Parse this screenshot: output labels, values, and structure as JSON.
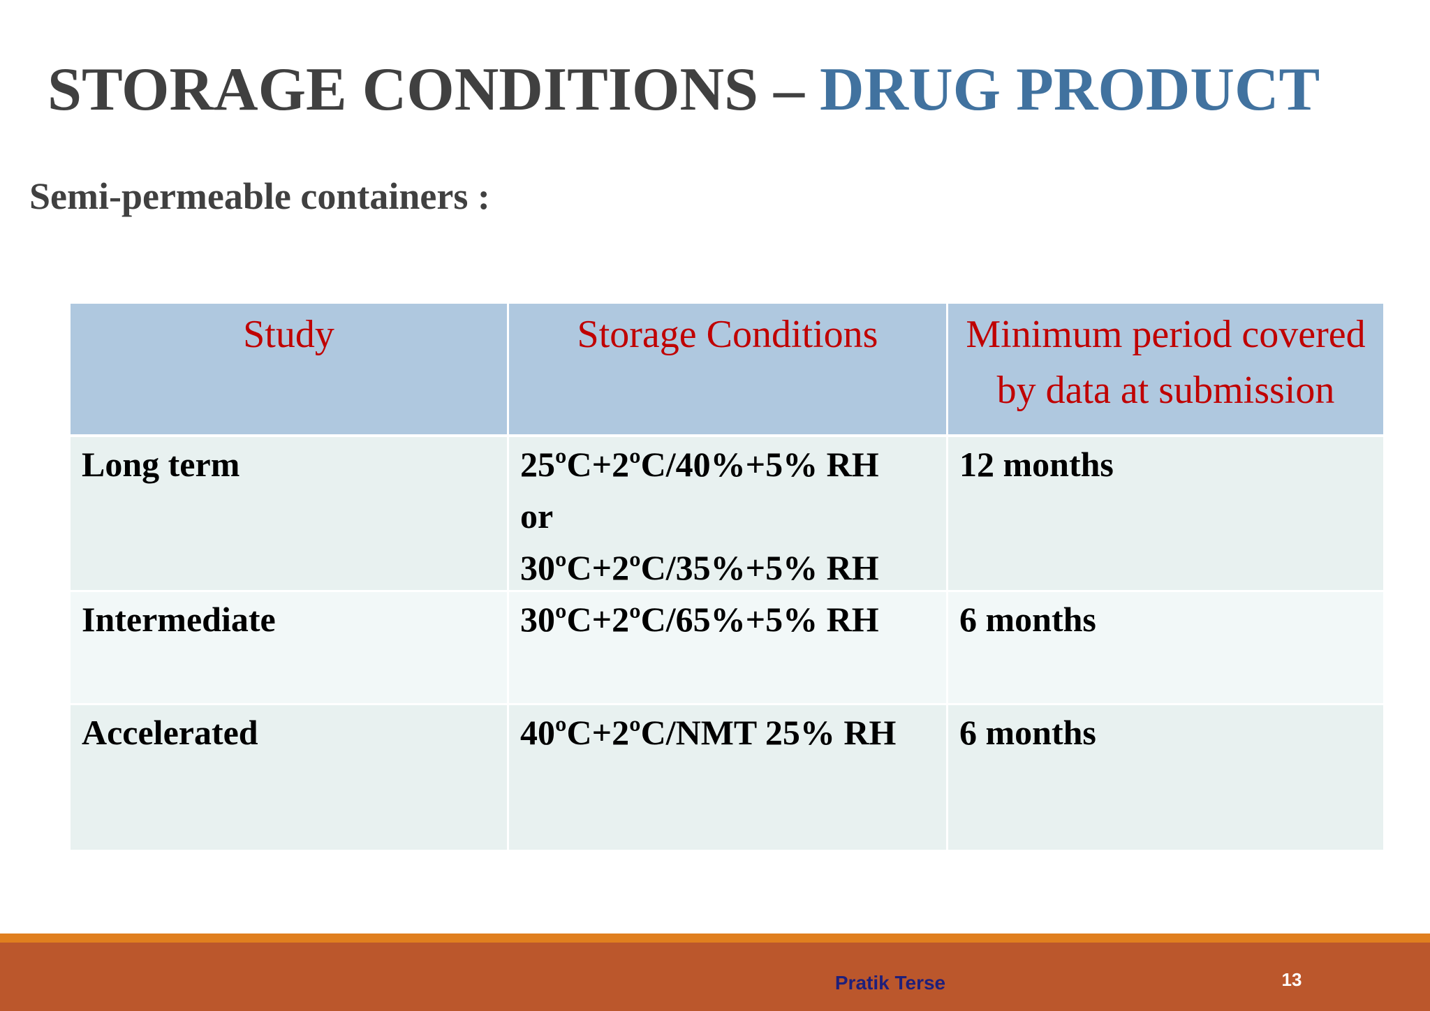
{
  "header": {
    "title_main": "STORAGE CONDITIONS – ",
    "title_accent": "DRUG PRODUCT",
    "subtitle": "Semi-permeable containers :"
  },
  "table": {
    "columns": [
      "Study",
      "Storage Conditions",
      "Minimum period covered by data at submission"
    ],
    "rows": [
      [
        [
          "Long term"
        ],
        [
          "25ºC+2ºC/40%+5% RH",
          "or",
          "30ºC+2ºC/35%+5% RH"
        ],
        [
          "12 months"
        ]
      ],
      [
        [
          "Intermediate"
        ],
        [
          "30ºC+2ºC/65%+5% RH"
        ],
        [
          "6 months"
        ]
      ],
      [
        [
          "Accelerated"
        ],
        [
          "40ºC+2ºC/NMT 25% RH"
        ],
        [
          "6 months"
        ]
      ]
    ]
  },
  "footer": {
    "author": "Pratik Terse",
    "page": "13"
  }
}
